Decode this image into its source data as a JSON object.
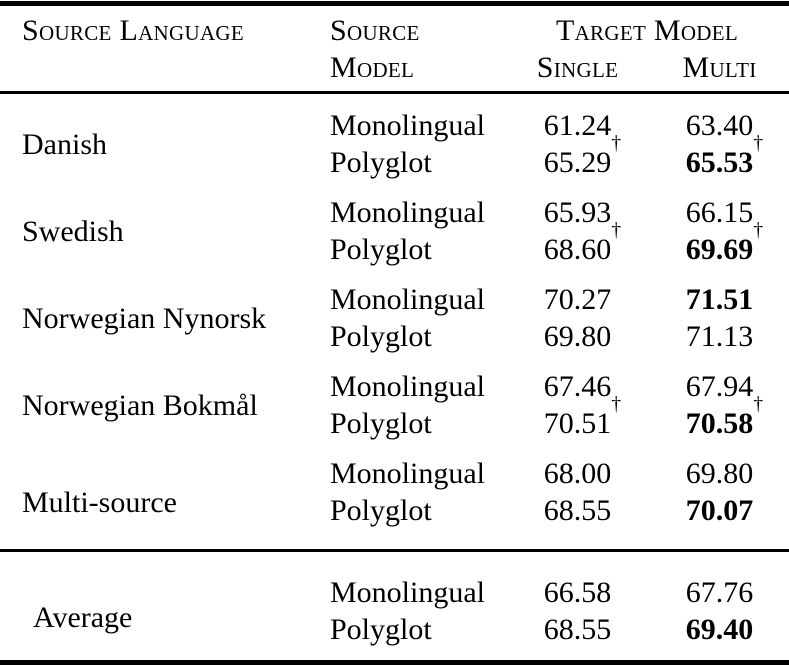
{
  "header": {
    "source_language": "Source Language",
    "source_model": [
      "Source",
      "Model"
    ],
    "target_model": "Target Model",
    "single": "Single",
    "multi": "Multi"
  },
  "groups": [
    {
      "language": "Danish",
      "rows": [
        {
          "model": "Monolingual",
          "single": {
            "value": "61.24",
            "mark": "",
            "bold": false
          },
          "multi": {
            "value": "63.40",
            "mark": "",
            "bold": false
          }
        },
        {
          "model": "Polyglot",
          "single": {
            "value": "65.29",
            "mark": "†",
            "bold": false
          },
          "multi": {
            "value": "65.53",
            "mark": "†",
            "bold": true
          }
        }
      ]
    },
    {
      "language": "Swedish",
      "rows": [
        {
          "model": "Monolingual",
          "single": {
            "value": "65.93",
            "mark": "",
            "bold": false
          },
          "multi": {
            "value": "66.15",
            "mark": "",
            "bold": false
          }
        },
        {
          "model": "Polyglot",
          "single": {
            "value": "68.60",
            "mark": "†",
            "bold": false
          },
          "multi": {
            "value": "69.69",
            "mark": "†",
            "bold": true
          }
        }
      ]
    },
    {
      "language": "Norwegian Nynorsk",
      "rows": [
        {
          "model": "Monolingual",
          "single": {
            "value": "70.27",
            "mark": "",
            "bold": false
          },
          "multi": {
            "value": "71.51",
            "mark": "",
            "bold": true
          }
        },
        {
          "model": "Polyglot",
          "single": {
            "value": "69.80",
            "mark": "",
            "bold": false
          },
          "multi": {
            "value": "71.13",
            "mark": "",
            "bold": false
          }
        }
      ]
    },
    {
      "language": "Norwegian Bokmål",
      "rows": [
        {
          "model": "Monolingual",
          "single": {
            "value": "67.46",
            "mark": "",
            "bold": false
          },
          "multi": {
            "value": "67.94",
            "mark": "",
            "bold": false
          }
        },
        {
          "model": "Polyglot",
          "single": {
            "value": "70.51",
            "mark": "†",
            "bold": false
          },
          "multi": {
            "value": "70.58",
            "mark": "†",
            "bold": true
          }
        }
      ]
    },
    {
      "language": "Multi-source",
      "rows": [
        {
          "model": "Monolingual",
          "single": {
            "value": "68.00",
            "mark": "",
            "bold": false
          },
          "multi": {
            "value": "69.80",
            "mark": "",
            "bold": false
          }
        },
        {
          "model": "Polyglot",
          "single": {
            "value": "68.55",
            "mark": "",
            "bold": false
          },
          "multi": {
            "value": "70.07",
            "mark": "",
            "bold": true
          }
        }
      ]
    },
    {
      "language": "Average",
      "rows": [
        {
          "model": "Monolingual",
          "single": {
            "value": "66.58",
            "mark": "",
            "bold": false
          },
          "multi": {
            "value": "67.76",
            "mark": "",
            "bold": false
          }
        },
        {
          "model": "Polyglot",
          "single": {
            "value": "68.55",
            "mark": "",
            "bold": false
          },
          "multi": {
            "value": "69.40",
            "mark": "",
            "bold": true
          }
        }
      ]
    }
  ],
  "marks": {
    "dagger": "†"
  },
  "colors": {
    "text": "#000000",
    "background": "#ffffff",
    "rule": "#000000"
  }
}
